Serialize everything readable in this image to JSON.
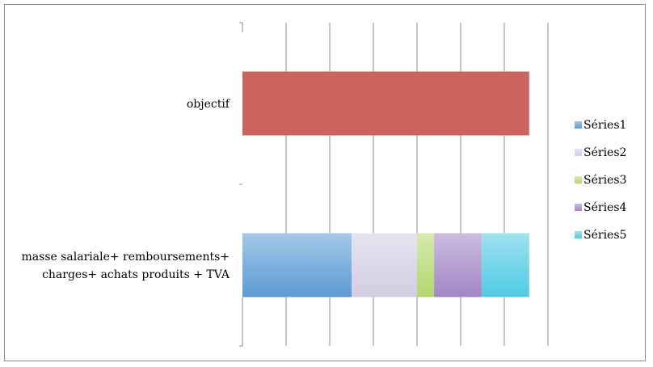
{
  "chart_data": {
    "type": "bar",
    "orientation": "horizontal",
    "stacked": true,
    "title": "",
    "xlabel": "",
    "ylabel": "",
    "xlim": [
      0,
      7
    ],
    "grid": true,
    "legend_position": "right",
    "categories": [
      "masse salariale+ remboursements+ charges+  achats produits + TVA",
      "objectif"
    ],
    "category_lines": [
      [
        "masse salariale+ remboursements+",
        "charges+  achats produits + TVA"
      ],
      [
        "objectif"
      ]
    ],
    "series": [
      {
        "name": "Séries1",
        "values": [
          2.5,
          6.57
        ],
        "color": "#5b9bd5"
      },
      {
        "name": "Séries2",
        "values": [
          1.5,
          null
        ],
        "color": "#d3cde3"
      },
      {
        "name": "Séries3",
        "values": [
          0.39,
          null
        ],
        "color": "#b2d86b"
      },
      {
        "name": "Séries4",
        "values": [
          1.09,
          null
        ],
        "color": "#a386c6"
      },
      {
        "name": "Séries5",
        "values": [
          1.09,
          null
        ],
        "color": "#4fcbe4"
      }
    ],
    "objectif_color": "#cd645d"
  }
}
